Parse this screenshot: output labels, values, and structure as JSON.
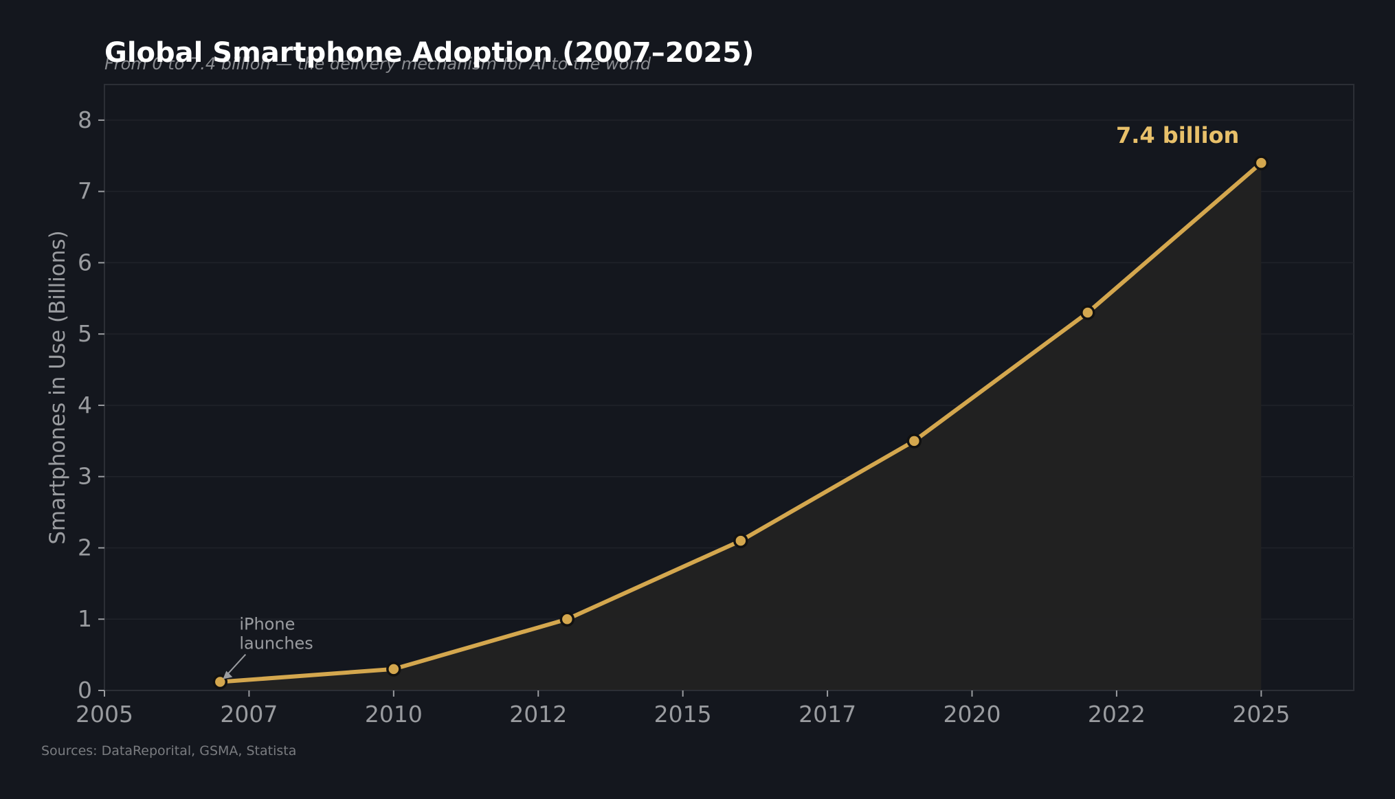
{
  "chart_data": {
    "type": "line",
    "title": "Global Smartphone Adoption (2007–2025)",
    "subtitle": "From 0 to 7.4 billion — the delivery mechanism for AI to the world",
    "xlabel": "",
    "ylabel": "Smartphones in Use (Billions)",
    "xlim": [
      2005,
      2026.6
    ],
    "ylim": [
      0,
      8.5
    ],
    "x_ticks": [
      2005,
      2007.5,
      2010,
      2012.5,
      2015,
      2017.5,
      2020,
      2022.5,
      2025
    ],
    "x_tick_labels": [
      "2005",
      "2007",
      "2010",
      "2012",
      "2015",
      "2017",
      "2020",
      "2022",
      "2025"
    ],
    "y_ticks": [
      0,
      1,
      2,
      3,
      4,
      5,
      6,
      7,
      8
    ],
    "y_tick_labels": [
      "0",
      "1",
      "2",
      "3",
      "4",
      "5",
      "6",
      "7",
      "8"
    ],
    "grid": true,
    "series": [
      {
        "name": "Smartphones in Use (Billions)",
        "color": "#d4a74e",
        "fill_color": "#222222",
        "x": [
          2007,
          2010,
          2013,
          2016,
          2019,
          2022,
          2025
        ],
        "values": [
          0.12,
          0.3,
          1.0,
          2.1,
          3.5,
          5.3,
          7.4
        ]
      }
    ],
    "annotations": [
      {
        "text_lines": [
          "iPhone",
          "launches"
        ],
        "point_x": 2007,
        "point_y": 0.12,
        "color": "#9a9ca0"
      },
      {
        "text": "7.4 billion",
        "point_x": 2025,
        "point_y": 7.4,
        "color": "#e8c06a"
      }
    ],
    "source": "Sources: DataReporital, GSMA, Statista"
  }
}
